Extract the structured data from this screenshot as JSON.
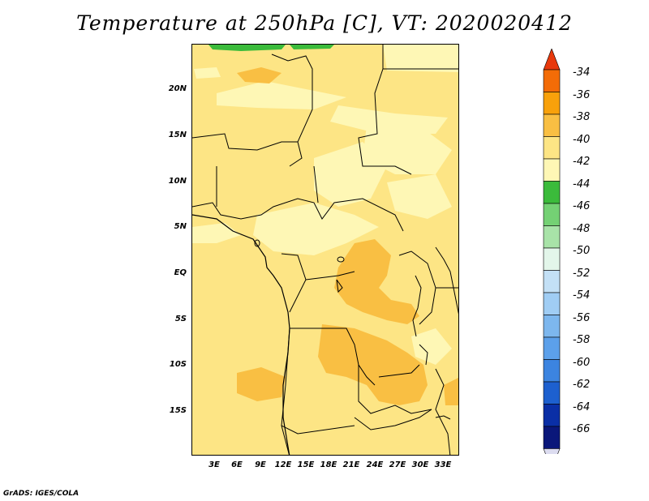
{
  "title": "Temperature at 250hPa [C], VT: 2020020412",
  "y_ticks": [
    "20N",
    "15N",
    "10N",
    "5N",
    "EQ",
    "5S",
    "10S",
    "15S"
  ],
  "x_ticks": [
    "3E",
    "6E",
    "9E",
    "12E",
    "15E",
    "18E",
    "21E",
    "24E",
    "27E",
    "30E",
    "33E"
  ],
  "colorbar": {
    "labels": [
      "-34",
      "-36",
      "-38",
      "-40",
      "-42",
      "-44",
      "-46",
      "-48",
      "-50",
      "-52",
      "-54",
      "-56",
      "-58",
      "-60",
      "-62",
      "-64",
      "-66"
    ],
    "colors": [
      "#e8390c",
      "#f36c07",
      "#f8a10b",
      "#f9bf43",
      "#fde585",
      "#fef7b5",
      "#3bbb3b",
      "#74d174",
      "#a8e3a8",
      "#e3f6ea",
      "#c3e0f6",
      "#a0cdf4",
      "#7db7ee",
      "#5ca0ea",
      "#3c84e0",
      "#1d60cf",
      "#0a2fa6",
      "#0a177a",
      "#dcdcf0"
    ]
  },
  "map": {
    "background_color": "#fde585",
    "lon_range": [
      0,
      34
    ],
    "lat_range": [
      -20,
      24.5
    ]
  },
  "credit": "GrADS: IGES/COLA"
}
